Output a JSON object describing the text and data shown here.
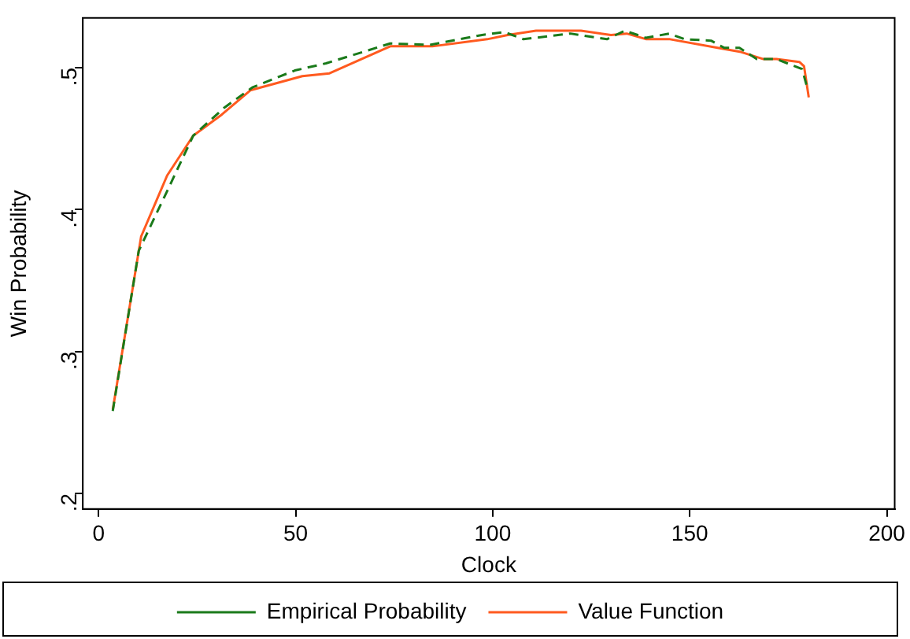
{
  "chart_data": {
    "type": "line",
    "xlabel": "Clock",
    "ylabel": "Win Probability",
    "xlim": [
      -4,
      202
    ],
    "xticks": [
      0,
      50,
      100,
      150,
      200
    ],
    "ylim": [
      0.189,
      0.535
    ],
    "yticks": [
      {
        "value": 0.2,
        "label": ".2"
      },
      {
        "value": 0.3,
        "label": ".3"
      },
      {
        "value": 0.4,
        "label": ".4"
      },
      {
        "value": 0.5,
        "label": ".5"
      }
    ],
    "grid": false,
    "legend": "bottom",
    "marker": "none",
    "series": [
      {
        "name": "Empirical Probability",
        "color": "#1a7a1a",
        "line_style": "dashed",
        "x": [
          3.6,
          10.2,
          17.4,
          24,
          32,
          39,
          49.8,
          57.7,
          74,
          84,
          97.3,
          103,
          107.8,
          119.7,
          129,
          133.5,
          138.9,
          144.8,
          148.7,
          155.4,
          158.7,
          162.6,
          167,
          172,
          178.5,
          179.8
        ],
        "values": [
          0.258,
          0.371,
          0.413,
          0.452,
          0.472,
          0.486,
          0.498,
          0.503,
          0.517,
          0.516,
          0.523,
          0.525,
          0.52,
          0.524,
          0.52,
          0.526,
          0.521,
          0.524,
          0.52,
          0.519,
          0.514,
          0.514,
          0.506,
          0.506,
          0.499,
          0.486
        ]
      },
      {
        "name": "Value Function",
        "color": "#ff5a1f",
        "line_style": "solid",
        "x": [
          3.6,
          10.8,
          17.4,
          24,
          31.3,
          38.5,
          51.7,
          58.6,
          74,
          84.7,
          98.6,
          103.8,
          111,
          122.4,
          130,
          134,
          139,
          145,
          159,
          163,
          168.7,
          172,
          177.8,
          179,
          180.2
        ],
        "values": [
          0.259,
          0.381,
          0.424,
          0.452,
          0.467,
          0.484,
          0.494,
          0.496,
          0.515,
          0.515,
          0.52,
          0.523,
          0.526,
          0.526,
          0.523,
          0.524,
          0.52,
          0.52,
          0.513,
          0.511,
          0.506,
          0.506,
          0.504,
          0.501,
          0.479
        ]
      }
    ]
  }
}
